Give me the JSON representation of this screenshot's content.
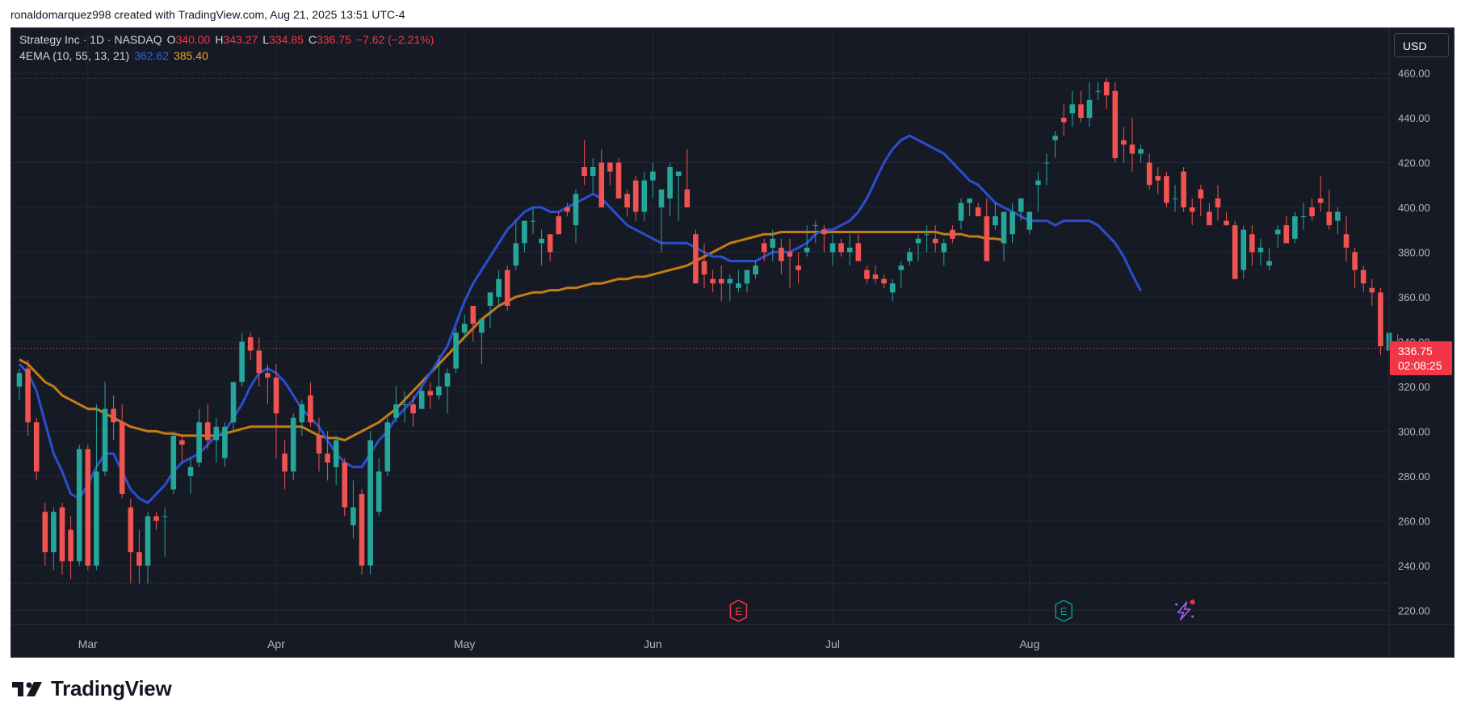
{
  "header": {
    "author": "ronaldomarquez998",
    "created_with": "created with TradingView.com, Aug 21, 2025 13:51 UTC-4"
  },
  "legend": {
    "symbol": "Strategy Inc · 1D · NASDAQ",
    "o_label": "O",
    "o_value": "340.00",
    "h_label": "H",
    "h_value": "343.27",
    "l_label": "L",
    "l_value": "334.85",
    "c_label": "C",
    "c_value": "336.75",
    "change": "−7.62 (−2.21%)",
    "indicator": "4EMA (10, 55, 13, 21)",
    "ema_fast_value": "362.62",
    "ema_slow_value": "385.40"
  },
  "currency_button": "USD",
  "last_price": {
    "price": "336.75",
    "countdown": "02:08:25"
  },
  "brand": {
    "name": "TradingView",
    "logo_icon": "tradingview-logo-icon"
  },
  "events": [
    {
      "label": "E",
      "icon": "earnings-event-icon",
      "color": "#f23645",
      "index": 84
    },
    {
      "label": "E",
      "icon": "earnings-event-icon",
      "color": "#089981",
      "index": 122
    }
  ],
  "extra_icons": [
    {
      "icon": "lightning-spark-icon",
      "color": "#a35ff5",
      "index": 136
    }
  ],
  "colors": {
    "up": "#26a69a",
    "down": "#f05350",
    "ema_fast": "#2b4ed1",
    "ema_slow": "#c57c16",
    "grid": "#232733",
    "axis_text": "#b2b5be",
    "background": "#161a25"
  },
  "chart_data": {
    "type": "candlestick",
    "x_axis_labels": [
      {
        "label": "Mar",
        "index": 8
      },
      {
        "label": "Apr",
        "index": 30
      },
      {
        "label": "May",
        "index": 52
      },
      {
        "label": "Jun",
        "index": 74
      },
      {
        "label": "Jul",
        "index": 95
      },
      {
        "label": "Aug",
        "index": 118
      }
    ],
    "y_ticks": [
      "220.00",
      "240.00",
      "260.00",
      "280.00",
      "300.00",
      "320.00",
      "340.00",
      "360.00",
      "380.00",
      "400.00",
      "420.00",
      "440.00",
      "460.00"
    ],
    "ylim": [
      214,
      480
    ],
    "dotted_levels": [
      457.5,
      337,
      232
    ],
    "candles": [
      [
        320,
        328,
        314,
        326
      ],
      [
        328,
        332,
        298,
        304
      ],
      [
        304,
        306,
        278,
        282
      ],
      [
        264,
        268,
        240,
        246
      ],
      [
        246,
        266,
        238,
        264
      ],
      [
        266,
        268,
        236,
        242
      ],
      [
        256,
        262,
        234,
        242
      ],
      [
        242,
        294,
        240,
        292
      ],
      [
        292,
        294,
        238,
        240
      ],
      [
        240,
        312,
        238,
        282
      ],
      [
        282,
        322,
        280,
        310
      ],
      [
        310,
        316,
        296,
        304
      ],
      [
        304,
        312,
        270,
        272
      ],
      [
        266,
        270,
        232,
        246
      ],
      [
        246,
        256,
        232,
        240
      ],
      [
        240,
        264,
        232,
        262
      ],
      [
        262,
        264,
        256,
        260
      ],
      [
        262,
        266,
        244,
        262
      ],
      [
        274,
        300,
        272,
        298
      ],
      [
        296,
        298,
        286,
        294
      ],
      [
        280,
        288,
        272,
        284
      ],
      [
        286,
        310,
        284,
        304
      ],
      [
        304,
        312,
        292,
        296
      ],
      [
        296,
        306,
        286,
        302
      ],
      [
        288,
        304,
        284,
        302
      ],
      [
        304,
        322,
        300,
        322
      ],
      [
        322,
        344,
        320,
        340
      ],
      [
        342,
        344,
        332,
        336
      ],
      [
        336,
        342,
        320,
        326
      ],
      [
        326,
        330,
        312,
        324
      ],
      [
        324,
        330,
        288,
        308
      ],
      [
        290,
        296,
        274,
        282
      ],
      [
        282,
        308,
        278,
        306
      ],
      [
        304,
        314,
        298,
        312
      ],
      [
        316,
        322,
        302,
        304
      ],
      [
        298,
        306,
        282,
        290
      ],
      [
        290,
        300,
        278,
        286
      ],
      [
        284,
        298,
        276,
        296
      ],
      [
        286,
        288,
        262,
        266
      ],
      [
        258,
        278,
        252,
        266
      ],
      [
        272,
        274,
        236,
        240
      ],
      [
        240,
        300,
        236,
        296
      ],
      [
        264,
        288,
        262,
        282
      ],
      [
        282,
        306,
        280,
        304
      ],
      [
        306,
        320,
        304,
        312
      ],
      [
        312,
        318,
        304,
        312
      ],
      [
        312,
        316,
        302,
        308
      ],
      [
        310,
        320,
        310,
        318
      ],
      [
        318,
        322,
        310,
        316
      ],
      [
        316,
        334,
        314,
        320
      ],
      [
        320,
        328,
        308,
        326
      ],
      [
        328,
        346,
        326,
        344
      ],
      [
        344,
        352,
        342,
        348
      ],
      [
        356,
        354,
        340,
        348
      ],
      [
        344,
        350,
        330,
        350
      ],
      [
        356,
        362,
        346,
        362
      ],
      [
        360,
        372,
        356,
        368
      ],
      [
        372,
        374,
        354,
        356
      ],
      [
        374,
        394,
        372,
        384
      ],
      [
        384,
        394,
        380,
        394
      ],
      [
        394,
        400,
        388,
        394
      ],
      [
        384,
        390,
        374,
        386
      ],
      [
        388,
        388,
        376,
        380
      ],
      [
        396,
        398,
        388,
        388
      ],
      [
        400,
        402,
        396,
        398
      ],
      [
        392,
        408,
        384,
        406
      ],
      [
        418,
        430,
        410,
        414
      ],
      [
        414,
        422,
        406,
        418
      ],
      [
        420,
        426,
        400,
        400
      ],
      [
        420,
        420,
        410,
        416
      ],
      [
        420,
        422,
        404,
        404
      ],
      [
        406,
        408,
        396,
        400
      ],
      [
        412,
        414,
        394,
        398
      ],
      [
        398,
        416,
        394,
        412
      ],
      [
        412,
        420,
        404,
        416
      ],
      [
        400,
        406,
        380,
        408
      ],
      [
        404,
        420,
        396,
        418
      ],
      [
        414,
        416,
        394,
        416
      ],
      [
        408,
        426,
        400,
        400
      ],
      [
        388,
        390,
        366,
        366
      ],
      [
        376,
        384,
        364,
        370
      ],
      [
        368,
        372,
        362,
        366
      ],
      [
        368,
        374,
        358,
        366
      ],
      [
        366,
        370,
        358,
        368
      ],
      [
        364,
        372,
        362,
        366
      ],
      [
        366,
        370,
        362,
        372
      ],
      [
        370,
        376,
        368,
        374
      ],
      [
        384,
        386,
        376,
        380
      ],
      [
        382,
        390,
        376,
        386
      ],
      [
        382,
        386,
        370,
        376
      ],
      [
        380,
        386,
        364,
        378
      ],
      [
        374,
        380,
        366,
        372
      ],
      [
        380,
        392,
        378,
        382
      ],
      [
        392,
        394,
        384,
        392
      ],
      [
        390,
        392,
        380,
        388
      ],
      [
        380,
        388,
        374,
        384
      ],
      [
        384,
        386,
        378,
        380
      ],
      [
        380,
        388,
        374,
        382
      ],
      [
        384,
        388,
        376,
        376
      ],
      [
        372,
        374,
        366,
        368
      ],
      [
        370,
        374,
        366,
        368
      ],
      [
        368,
        370,
        364,
        366
      ],
      [
        362,
        368,
        358,
        366
      ],
      [
        372,
        376,
        364,
        374
      ],
      [
        376,
        382,
        374,
        380
      ],
      [
        384,
        388,
        376,
        386
      ],
      [
        388,
        392,
        380,
        388
      ],
      [
        386,
        392,
        380,
        384
      ],
      [
        380,
        386,
        374,
        384
      ],
      [
        390,
        392,
        384,
        386
      ],
      [
        394,
        404,
        390,
        402
      ],
      [
        402,
        404,
        396,
        404
      ],
      [
        400,
        402,
        396,
        396
      ],
      [
        396,
        404,
        376,
        376
      ],
      [
        392,
        402,
        390,
        396
      ],
      [
        384,
        398,
        376,
        398
      ],
      [
        388,
        402,
        384,
        398
      ],
      [
        398,
        404,
        394,
        404
      ],
      [
        390,
        396,
        388,
        398
      ],
      [
        410,
        416,
        398,
        412
      ],
      [
        420,
        424,
        410,
        420
      ],
      [
        430,
        434,
        422,
        432
      ],
      [
        440,
        446,
        432,
        438
      ],
      [
        442,
        452,
        436,
        446
      ],
      [
        446,
        452,
        438,
        440
      ],
      [
        440,
        456,
        436,
        448
      ],
      [
        452,
        456,
        448,
        452
      ],
      [
        456,
        458,
        444,
        450
      ],
      [
        452,
        456,
        420,
        422
      ],
      [
        430,
        436,
        420,
        428
      ],
      [
        428,
        440,
        416,
        424
      ],
      [
        424,
        428,
        420,
        426
      ],
      [
        420,
        424,
        408,
        410
      ],
      [
        414,
        418,
        406,
        412
      ],
      [
        414,
        416,
        400,
        402
      ],
      [
        404,
        410,
        398,
        404
      ],
      [
        416,
        418,
        398,
        400
      ],
      [
        400,
        404,
        392,
        398
      ],
      [
        408,
        410,
        396,
        404
      ],
      [
        398,
        402,
        392,
        392
      ],
      [
        404,
        410,
        394,
        400
      ],
      [
        394,
        398,
        392,
        392
      ],
      [
        392,
        394,
        368,
        368
      ],
      [
        372,
        392,
        368,
        390
      ],
      [
        388,
        392,
        374,
        380
      ],
      [
        380,
        386,
        374,
        382
      ],
      [
        374,
        382,
        372,
        376
      ],
      [
        388,
        392,
        382,
        390
      ],
      [
        392,
        396,
        384,
        384
      ],
      [
        386,
        398,
        384,
        396
      ],
      [
        396,
        402,
        390,
        396
      ],
      [
        400,
        404,
        394,
        396
      ],
      [
        404,
        414,
        398,
        402
      ],
      [
        398,
        408,
        390,
        392
      ],
      [
        394,
        400,
        388,
        398
      ],
      [
        388,
        396,
        376,
        382
      ],
      [
        380,
        382,
        364,
        372
      ],
      [
        372,
        374,
        362,
        366
      ],
      [
        364,
        368,
        356,
        362
      ],
      [
        362,
        364,
        334,
        338
      ],
      [
        336,
        346,
        326,
        344
      ],
      [
        340,
        343.27,
        334.85,
        336.75
      ]
    ],
    "ema_fast": [
      330,
      326,
      318,
      304,
      290,
      282,
      272,
      270,
      276,
      284,
      290,
      290,
      282,
      274,
      270,
      268,
      272,
      276,
      282,
      286,
      288,
      290,
      294,
      298,
      300,
      306,
      312,
      320,
      326,
      328,
      326,
      322,
      316,
      310,
      306,
      302,
      296,
      290,
      286,
      284,
      284,
      290,
      296,
      300,
      306,
      310,
      314,
      320,
      326,
      332,
      338,
      348,
      358,
      366,
      372,
      378,
      384,
      390,
      394,
      398,
      400,
      400,
      398,
      398,
      400,
      402,
      404,
      406,
      404,
      400,
      396,
      392,
      390,
      388,
      386,
      384,
      384,
      384,
      384,
      382,
      380,
      378,
      378,
      376,
      376,
      376,
      376,
      378,
      380,
      380,
      380,
      382,
      384,
      388,
      390,
      390,
      392,
      394,
      398,
      404,
      412,
      420,
      426,
      430,
      432,
      430,
      428,
      426,
      424,
      420,
      416,
      412,
      410,
      406,
      402,
      400,
      398,
      396,
      394,
      394,
      394,
      392,
      394,
      394,
      394,
      394,
      392,
      388,
      384,
      378,
      370,
      362.62
    ],
    "ema_slow": [
      332,
      330,
      326,
      322,
      320,
      316,
      314,
      312,
      310,
      310,
      308,
      306,
      304,
      302,
      301,
      300,
      300,
      299,
      299,
      298,
      298,
      298,
      298,
      298,
      299,
      300,
      301,
      302,
      302,
      302,
      302,
      302,
      302,
      302,
      300,
      298,
      297,
      297,
      296,
      298,
      300,
      302,
      304,
      307,
      310,
      314,
      318,
      322,
      326,
      330,
      334,
      338,
      342,
      346,
      350,
      353,
      356,
      358,
      360,
      361,
      362,
      362,
      363,
      363,
      364,
      364,
      365,
      366,
      366,
      367,
      368,
      368,
      369,
      369,
      370,
      371,
      372,
      373,
      374,
      376,
      378,
      380,
      382,
      384,
      385,
      386,
      387,
      388,
      388,
      389,
      389,
      389,
      389,
      389,
      389,
      389,
      389,
      389,
      389,
      389,
      389,
      389,
      389,
      389,
      389,
      389,
      389,
      389,
      388,
      388,
      388,
      387,
      387,
      386,
      386,
      385.4
    ]
  }
}
